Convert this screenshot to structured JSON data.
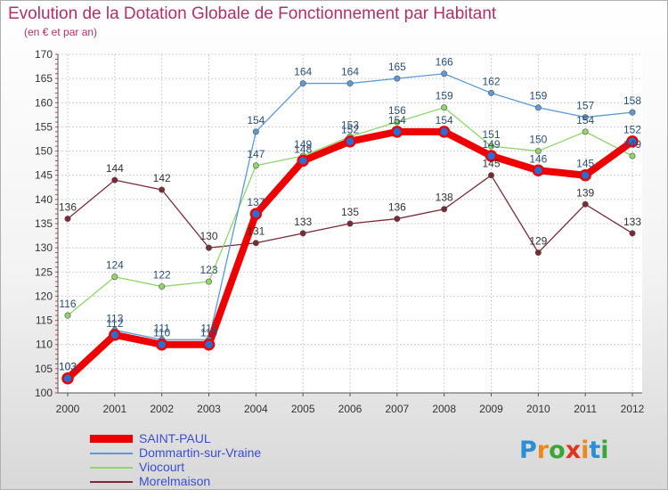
{
  "title": "Evolution de la Dotation Globale de Fonctionnement par Habitant",
  "subtitle": "(en € et par an)",
  "brand": {
    "letters": [
      "P",
      "r",
      "o",
      "x",
      "i",
      "t",
      "i"
    ],
    "colors": [
      "#2a8fd6",
      "#e98a1a",
      "#3aa635",
      "#e2331f",
      "#e98a1a",
      "#2a8fd6",
      "#3aa635"
    ]
  },
  "chart_data": {
    "type": "line",
    "title": "Evolution de la Dotation Globale de Fonctionnement par Habitant",
    "subtitle": "(en € et par an)",
    "x": [
      "2000",
      "2001",
      "2002",
      "2003",
      "2004",
      "2005",
      "2006",
      "2007",
      "2008",
      "2009",
      "2010",
      "2011",
      "2012"
    ],
    "ylim": [
      100,
      170
    ],
    "yticks": [
      100,
      105,
      110,
      115,
      120,
      125,
      130,
      135,
      140,
      145,
      150,
      155,
      160,
      165,
      170
    ],
    "grid": true,
    "legend_position": "bottom-left",
    "series": [
      {
        "name": "SAINT-PAUL",
        "color": "#ee0000",
        "values": [
          103,
          112,
          110,
          110,
          137,
          148,
          152,
          154,
          154,
          149,
          146,
          145,
          152
        ]
      },
      {
        "name": "Dommartin-sur-Vraine",
        "color": "#5b9ad5",
        "values": [
          103,
          113,
          111,
          111,
          154,
          164,
          164,
          165,
          166,
          162,
          159,
          157,
          158
        ]
      },
      {
        "name": "Viocourt",
        "color": "#8fd66a",
        "values": [
          116,
          124,
          122,
          123,
          147,
          149,
          153,
          156,
          159,
          151,
          150,
          154,
          149
        ]
      },
      {
        "name": "Morelmaison",
        "color": "#7a2a35",
        "values": [
          136,
          144,
          142,
          130,
          131,
          133,
          135,
          136,
          138,
          145,
          129,
          139,
          133
        ]
      }
    ]
  }
}
